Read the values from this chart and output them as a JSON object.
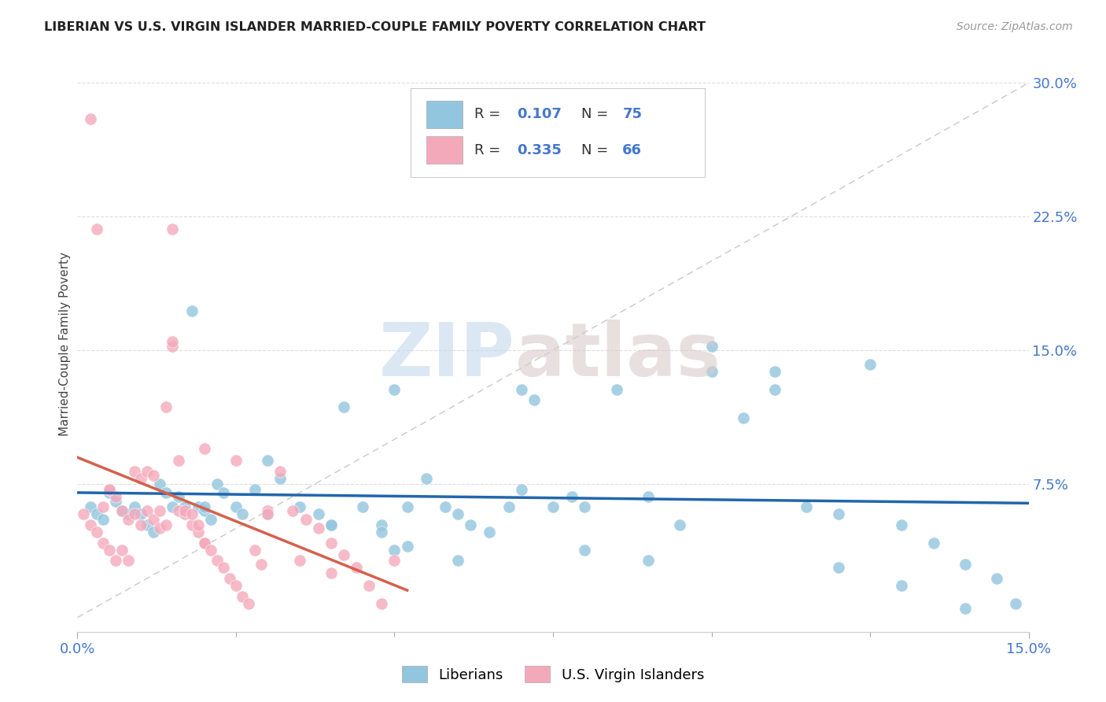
{
  "title": "LIBERIAN VS U.S. VIRGIN ISLANDER MARRIED-COUPLE FAMILY POVERTY CORRELATION CHART",
  "source": "Source: ZipAtlas.com",
  "ylabel": "Married-Couple Family Poverty",
  "xlim": [
    0.0,
    0.15
  ],
  "ylim": [
    -0.008,
    0.315
  ],
  "color_blue": "#92c5de",
  "color_pink": "#f4a9bb",
  "line_blue": "#2166ac",
  "line_pink": "#d6604d",
  "blue_x": [
    0.002,
    0.003,
    0.004,
    0.005,
    0.006,
    0.007,
    0.008,
    0.009,
    0.01,
    0.011,
    0.012,
    0.013,
    0.014,
    0.015,
    0.016,
    0.017,
    0.018,
    0.019,
    0.02,
    0.021,
    0.022,
    0.023,
    0.025,
    0.026,
    0.028,
    0.03,
    0.032,
    0.035,
    0.038,
    0.04,
    0.042,
    0.045,
    0.048,
    0.05,
    0.052,
    0.055,
    0.058,
    0.06,
    0.062,
    0.065,
    0.068,
    0.07,
    0.072,
    0.075,
    0.078,
    0.08,
    0.085,
    0.09,
    0.095,
    0.1,
    0.105,
    0.11,
    0.115,
    0.12,
    0.125,
    0.13,
    0.135,
    0.14,
    0.145,
    0.148,
    0.02,
    0.03,
    0.04,
    0.05,
    0.06,
    0.07,
    0.08,
    0.09,
    0.1,
    0.11,
    0.12,
    0.13,
    0.14,
    0.048,
    0.052
  ],
  "blue_y": [
    0.062,
    0.058,
    0.055,
    0.07,
    0.065,
    0.06,
    0.058,
    0.062,
    0.058,
    0.052,
    0.048,
    0.075,
    0.07,
    0.062,
    0.068,
    0.062,
    0.172,
    0.062,
    0.06,
    0.055,
    0.075,
    0.07,
    0.062,
    0.058,
    0.072,
    0.088,
    0.078,
    0.062,
    0.058,
    0.052,
    0.118,
    0.062,
    0.052,
    0.128,
    0.062,
    0.078,
    0.062,
    0.058,
    0.052,
    0.048,
    0.062,
    0.128,
    0.122,
    0.062,
    0.068,
    0.062,
    0.128,
    0.068,
    0.052,
    0.152,
    0.112,
    0.138,
    0.062,
    0.058,
    0.142,
    0.052,
    0.042,
    0.03,
    0.022,
    0.008,
    0.062,
    0.058,
    0.052,
    0.038,
    0.032,
    0.072,
    0.038,
    0.032,
    0.138,
    0.128,
    0.028,
    0.018,
    0.005,
    0.048,
    0.04
  ],
  "pink_x": [
    0.001,
    0.002,
    0.003,
    0.004,
    0.005,
    0.006,
    0.007,
    0.008,
    0.009,
    0.01,
    0.011,
    0.012,
    0.013,
    0.014,
    0.015,
    0.016,
    0.017,
    0.018,
    0.019,
    0.02,
    0.002,
    0.003,
    0.004,
    0.005,
    0.006,
    0.007,
    0.008,
    0.009,
    0.01,
    0.011,
    0.012,
    0.013,
    0.014,
    0.015,
    0.016,
    0.017,
    0.018,
    0.019,
    0.02,
    0.021,
    0.022,
    0.023,
    0.024,
    0.025,
    0.026,
    0.027,
    0.028,
    0.029,
    0.03,
    0.032,
    0.034,
    0.036,
    0.038,
    0.04,
    0.042,
    0.044,
    0.046,
    0.048,
    0.05,
    0.015,
    0.02,
    0.025,
    0.03,
    0.035,
    0.04,
    0.005
  ],
  "pink_y": [
    0.058,
    0.052,
    0.048,
    0.042,
    0.038,
    0.032,
    0.06,
    0.055,
    0.082,
    0.078,
    0.06,
    0.055,
    0.05,
    0.118,
    0.218,
    0.06,
    0.058,
    0.052,
    0.048,
    0.042,
    0.28,
    0.218,
    0.062,
    0.072,
    0.068,
    0.038,
    0.032,
    0.058,
    0.052,
    0.082,
    0.08,
    0.06,
    0.052,
    0.152,
    0.088,
    0.06,
    0.058,
    0.052,
    0.042,
    0.038,
    0.032,
    0.028,
    0.022,
    0.018,
    0.012,
    0.008,
    0.038,
    0.03,
    0.06,
    0.082,
    0.06,
    0.055,
    0.05,
    0.042,
    0.035,
    0.028,
    0.018,
    0.008,
    0.032,
    0.155,
    0.095,
    0.088,
    0.058,
    0.032,
    0.025,
    0.072
  ]
}
